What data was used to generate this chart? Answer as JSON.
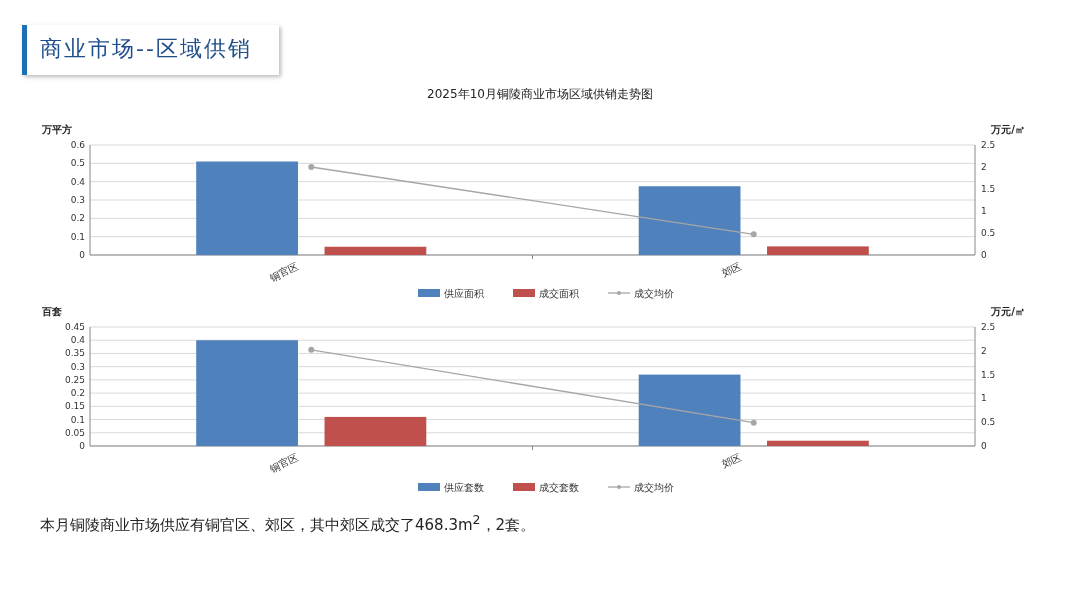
{
  "chart_data": [
    {
      "type": "bar",
      "title": "2025年10月铜陵商业市场区域供销走势图",
      "annotations": [
        "商业市场--区域供销"
      ],
      "categories": [
        "铜官区",
        "郊区"
      ],
      "ylabel": "万平方",
      "y2label": "万元/㎡",
      "ylim": [
        0,
        0.6
      ],
      "yticks": [
        0,
        0.1,
        0.2,
        0.3,
        0.4,
        0.5,
        0.6
      ],
      "y2lim": [
        0,
        2.5
      ],
      "y2ticks": [
        0,
        0.5,
        1,
        1.5,
        2,
        2.5
      ],
      "grid": "y",
      "legend": "bottom",
      "marker": "circle",
      "series": [
        {
          "name": "供应面积",
          "color": "#4f81bd",
          "values": [
            0.51,
            0.375
          ]
        },
        {
          "name": "成交面积",
          "color": "#c0504d",
          "values": [
            0.045,
            0.047
          ]
        },
        {
          "name": "成交均价",
          "type": "line",
          "axis": "y2",
          "color": "#a6a6a6",
          "values": [
            2.0,
            0.47
          ]
        }
      ]
    },
    {
      "type": "bar",
      "annotations": [
        "本月铜陵商业市场供应有铜官区、郊区，其中郊区成交了468.3m$^{2}$，2套。"
      ],
      "categories": [
        "铜官区",
        "郊区"
      ],
      "ylabel": "百套",
      "y2label": "万元/㎡",
      "ylim": [
        0,
        0.45
      ],
      "yticks": [
        0,
        0.05,
        0.1,
        0.15,
        0.2,
        0.25,
        0.3,
        0.35,
        0.4,
        0.45
      ],
      "y2lim": [
        0,
        2.5
      ],
      "y2ticks": [
        0,
        0.5,
        1,
        1.5,
        2,
        2.5
      ],
      "grid": "y",
      "legend": "bottom",
      "marker": "circle",
      "series": [
        {
          "name": "供应套数",
          "color": "#4f81bd",
          "values": [
            0.4,
            0.27
          ]
        },
        {
          "name": "成交套数",
          "color": "#c0504d",
          "values": [
            0.11,
            0.02
          ]
        },
        {
          "name": "成交均价",
          "type": "line",
          "axis": "y2",
          "color": "#a6a6a6",
          "values": [
            2.02,
            0.49
          ]
        }
      ]
    }
  ]
}
